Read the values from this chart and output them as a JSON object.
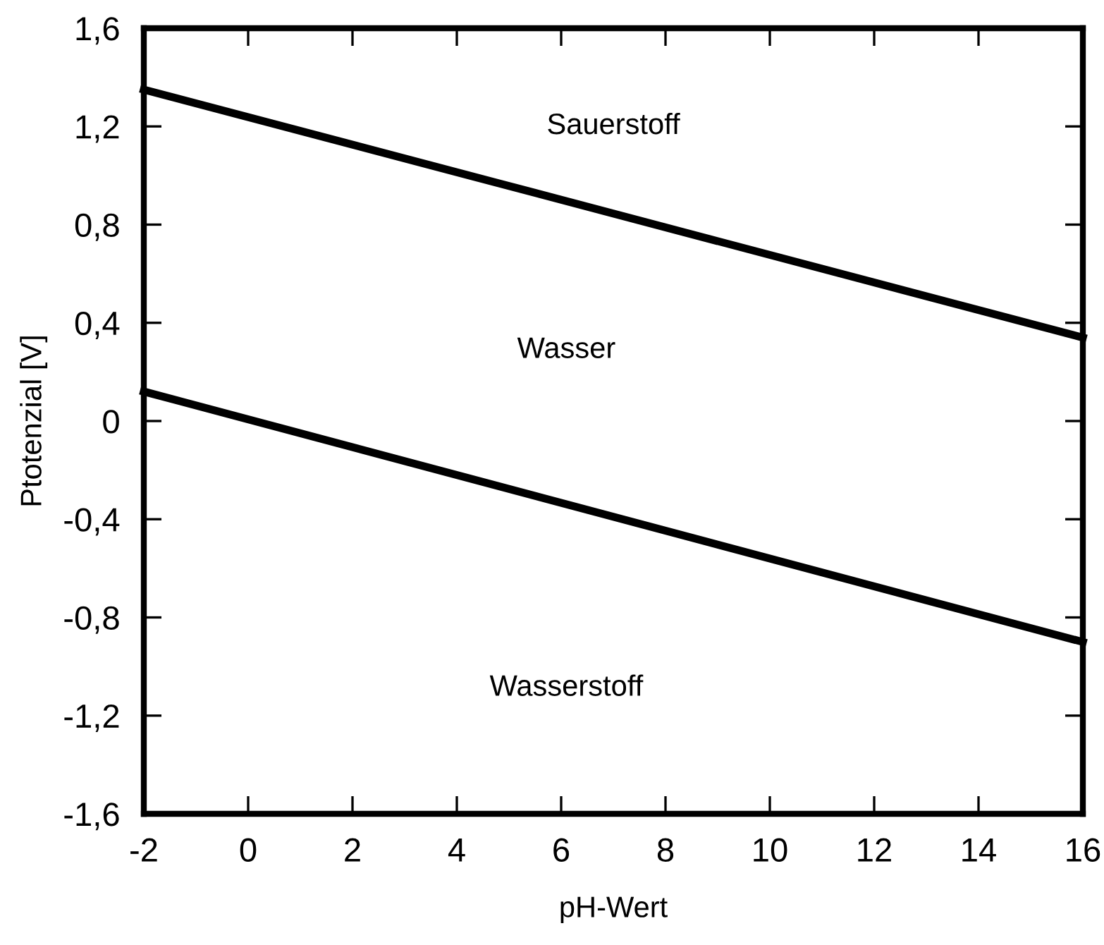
{
  "chart_data": {
    "type": "line",
    "xlabel": "pH-Wert",
    "ylabel": "Ptotenzial [V]",
    "x": [
      -2,
      16
    ],
    "series": [
      {
        "color": "#000000",
        "values": [
          1.35,
          0.34
        ]
      },
      {
        "color": "#000000",
        "values": [
          0.12,
          -0.9
        ]
      }
    ],
    "xlim": [
      -2,
      16
    ],
    "xticks": [
      -2,
      0,
      2,
      4,
      6,
      8,
      10,
      12,
      14,
      16
    ],
    "ylim": [
      -1.6,
      1.6
    ],
    "yticks": [
      {
        "value": -1.6,
        "label": "-1,6"
      },
      {
        "value": -1.2,
        "label": "-1,2"
      },
      {
        "value": -0.8,
        "label": "-0,8"
      },
      {
        "value": -0.4,
        "label": "-0,4"
      },
      0,
      {
        "value": 0.4,
        "label": "0,4"
      },
      {
        "value": 0.8,
        "label": "0,8"
      },
      {
        "value": 1.2,
        "label": "1,2"
      },
      {
        "value": 1.6,
        "label": "1,6"
      }
    ],
    "annotations": [
      "Sauerstoff",
      "Wasser",
      "Wasserstoff"
    ],
    "grid": false,
    "marker": "none",
    "line_style": "solid"
  }
}
